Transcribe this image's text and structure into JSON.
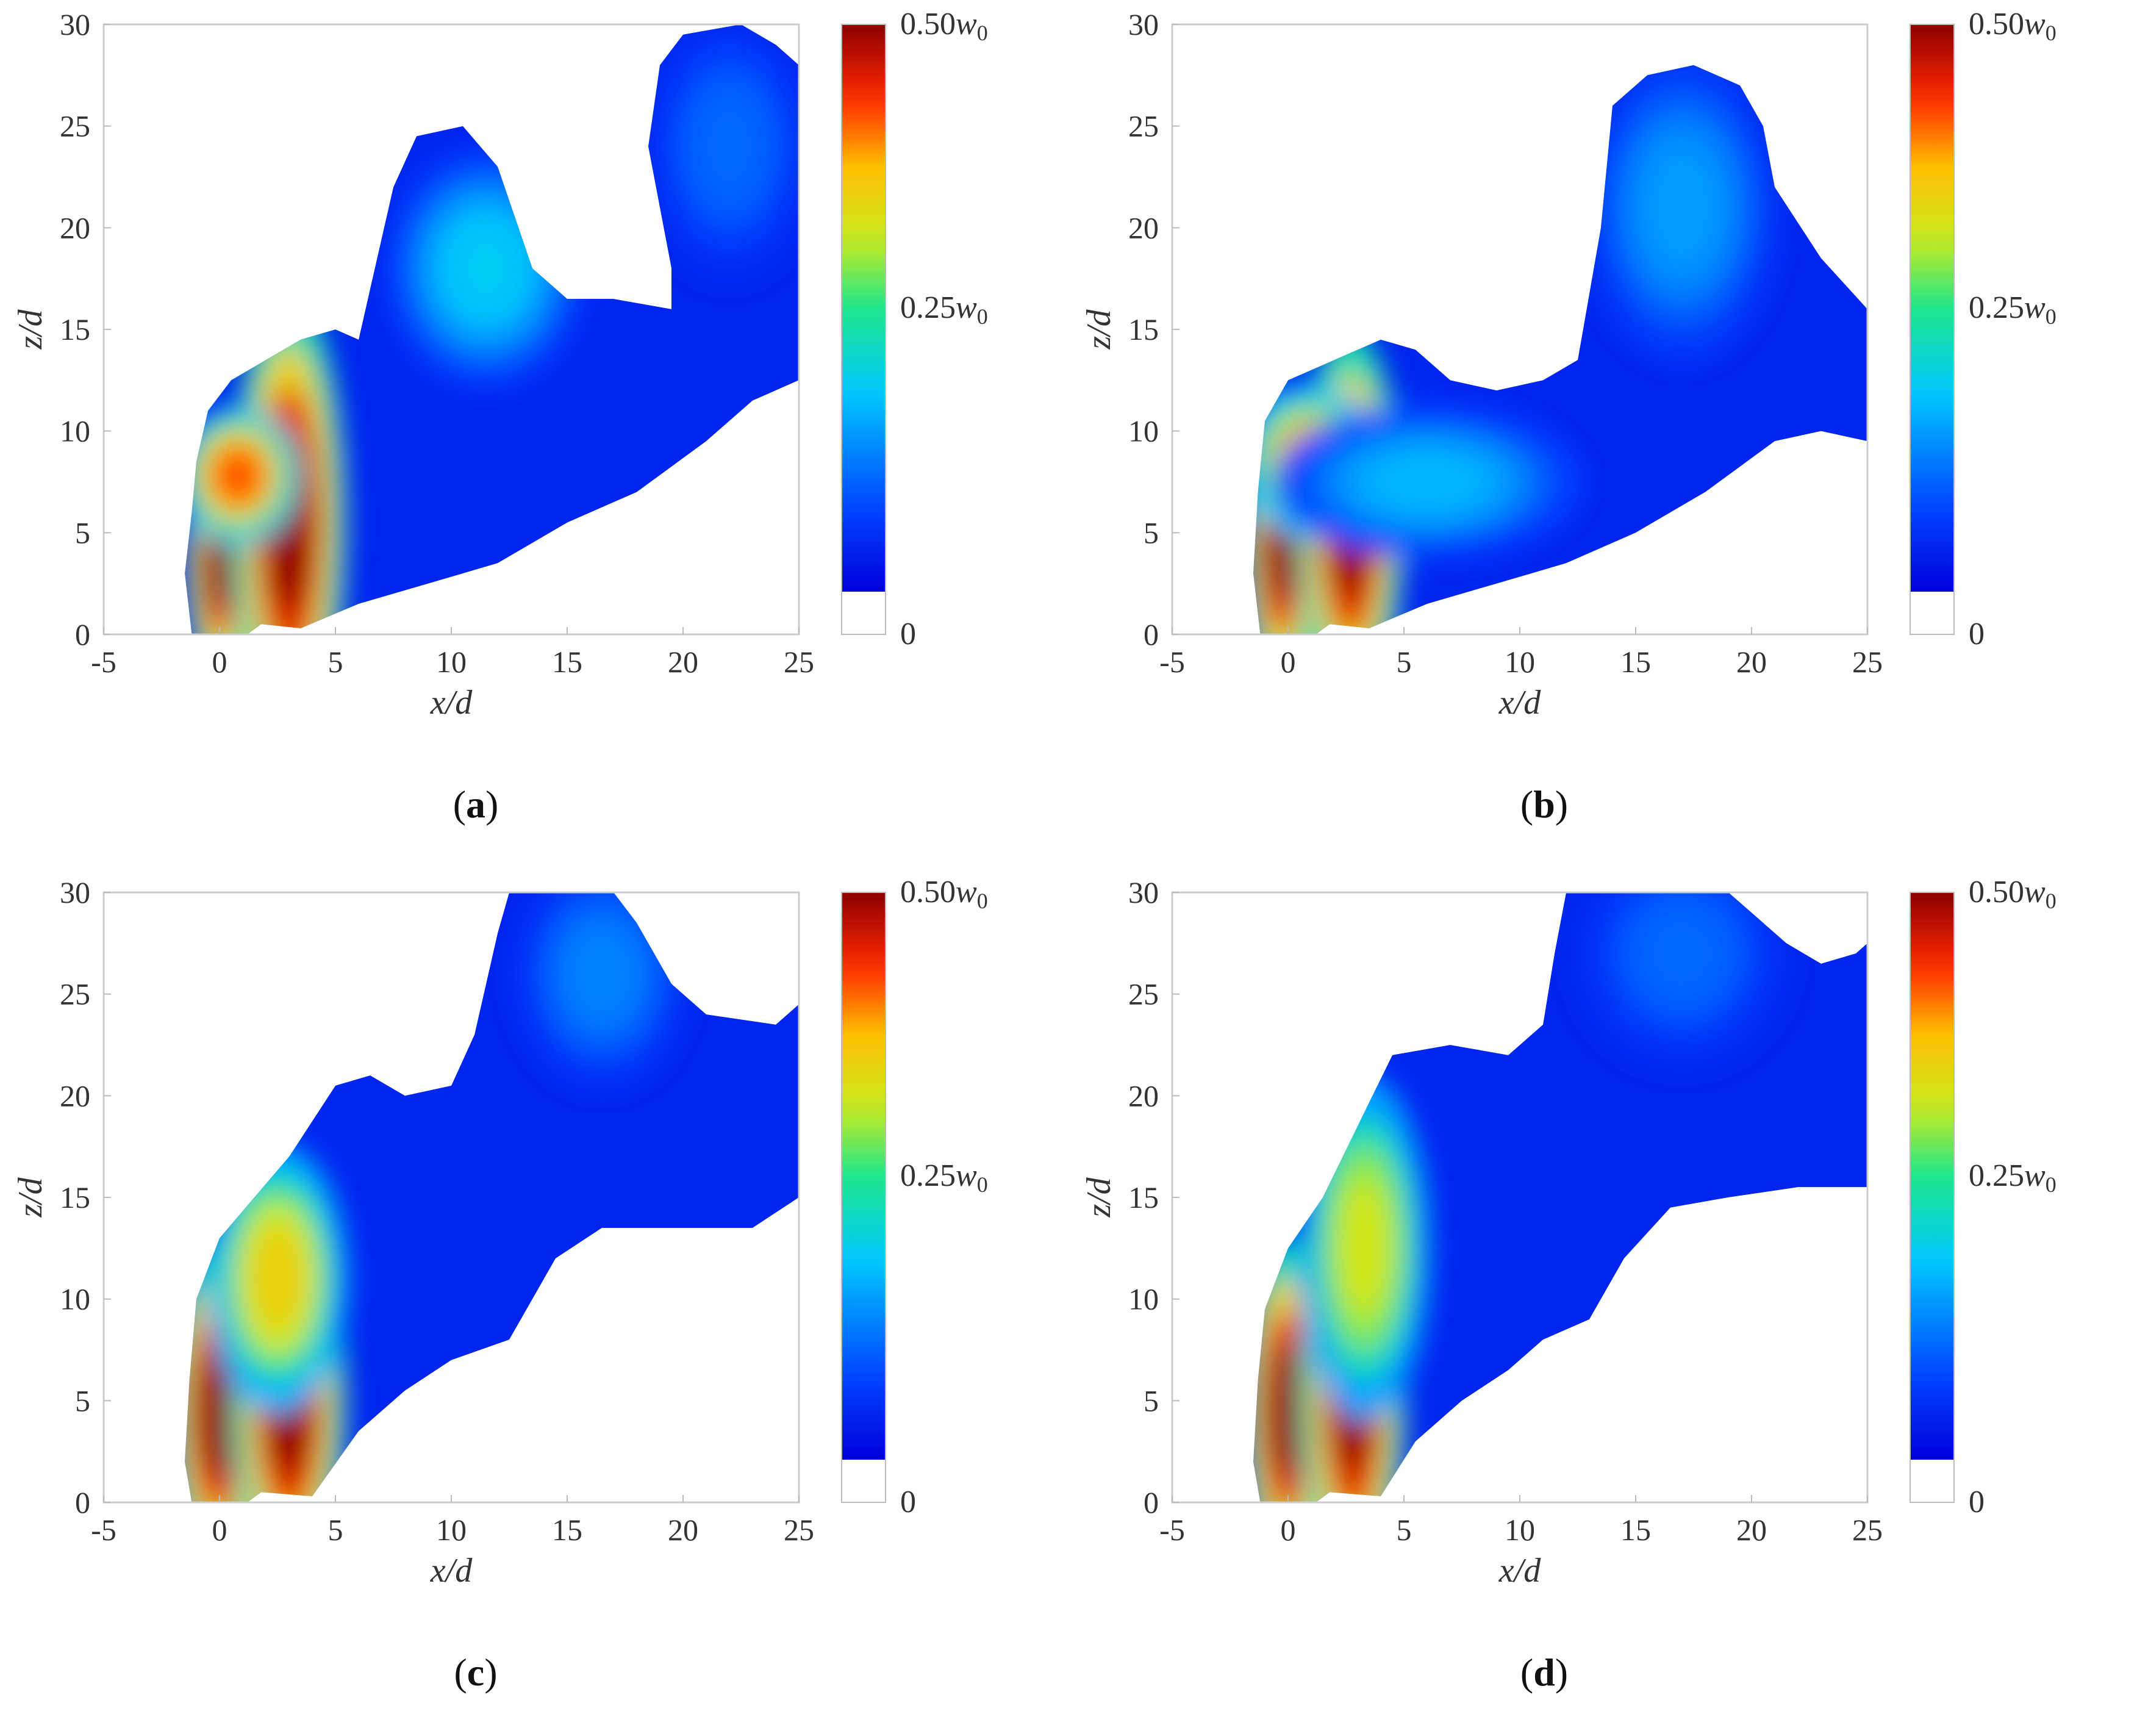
{
  "chart_data": [
    {
      "type": "heatmap",
      "panel_label": "a",
      "xlabel": "x/d",
      "ylabel": "z/d",
      "xlim": [
        -5,
        25
      ],
      "ylim": [
        0,
        30
      ],
      "xticks": [
        "-5",
        "0",
        "5",
        "10",
        "15",
        "20",
        "25"
      ],
      "yticks": [
        "0",
        "5",
        "10",
        "15",
        "20",
        "25",
        "30"
      ],
      "colorbar": {
        "labels": [
          "0.50w0",
          "0.25w0",
          "0"
        ],
        "max": 0.5,
        "mid": 0.25,
        "min": 0
      },
      "jet_outline": [
        [
          -1.2,
          0
        ],
        [
          1.2,
          0
        ],
        [
          1.8,
          0.5
        ],
        [
          3.5,
          0.3
        ],
        [
          6,
          1.5
        ],
        [
          9,
          2.5
        ],
        [
          12,
          3.5
        ],
        [
          15,
          5.5
        ],
        [
          18,
          7
        ],
        [
          21,
          9.5
        ],
        [
          23,
          11.5
        ],
        [
          25,
          12.5
        ],
        [
          25,
          28
        ],
        [
          24,
          29
        ],
        [
          22.5,
          30
        ],
        [
          20,
          29.5
        ],
        [
          19,
          28
        ],
        [
          18.5,
          24
        ],
        [
          19.5,
          18
        ],
        [
          19.5,
          16
        ],
        [
          17,
          16.5
        ],
        [
          15,
          16.5
        ],
        [
          13.5,
          18
        ],
        [
          12,
          23
        ],
        [
          10.5,
          25
        ],
        [
          8.5,
          24.5
        ],
        [
          7.5,
          22
        ],
        [
          6.5,
          17
        ],
        [
          6,
          14.5
        ],
        [
          5,
          15
        ],
        [
          3.5,
          14.5
        ],
        [
          2,
          13.5
        ],
        [
          0.5,
          12.5
        ],
        [
          -0.5,
          11
        ],
        [
          -1,
          8.5
        ],
        [
          -1.2,
          6
        ],
        [
          -1.5,
          3
        ]
      ],
      "plumes": [
        {
          "x": 0,
          "z": 3.5,
          "w": 0.8,
          "h": 3.2,
          "level": 0.5
        },
        {
          "x": 3,
          "z": 5.5,
          "w": 1.3,
          "h": 6,
          "level": 0.5
        },
        {
          "x": 0.8,
          "z": 7.8,
          "w": 1.4,
          "h": 1.8,
          "level": 0.42
        },
        {
          "x": 11.5,
          "z": 18,
          "w": 2.2,
          "h": 3,
          "level": 0.18
        },
        {
          "x": 22,
          "z": 24,
          "w": 2,
          "h": 3.5,
          "level": 0.1
        }
      ]
    },
    {
      "type": "heatmap",
      "panel_label": "b",
      "xlabel": "x/d",
      "ylabel": "z/d",
      "xlim": [
        -5,
        25
      ],
      "ylim": [
        0,
        30
      ],
      "xticks": [
        "-5",
        "0",
        "5",
        "10",
        "15",
        "20",
        "25"
      ],
      "yticks": [
        "0",
        "5",
        "10",
        "15",
        "20",
        "25",
        "30"
      ],
      "colorbar": {
        "labels": [
          "0.50w0",
          "0.25w0",
          "0"
        ],
        "max": 0.5,
        "mid": 0.25,
        "min": 0
      },
      "jet_outline": [
        [
          -1.2,
          0
        ],
        [
          1.2,
          0
        ],
        [
          1.8,
          0.5
        ],
        [
          3.5,
          0.3
        ],
        [
          6,
          1.5
        ],
        [
          9,
          2.5
        ],
        [
          12,
          3.5
        ],
        [
          15,
          5
        ],
        [
          18,
          7
        ],
        [
          21,
          9.5
        ],
        [
          23,
          10
        ],
        [
          25,
          9.5
        ],
        [
          25,
          16
        ],
        [
          23,
          18.5
        ],
        [
          21,
          22
        ],
        [
          20.5,
          25
        ],
        [
          19.5,
          27
        ],
        [
          17.5,
          28
        ],
        [
          15.5,
          27.5
        ],
        [
          14,
          26
        ],
        [
          13.5,
          20
        ],
        [
          12.5,
          13.5
        ],
        [
          11,
          12.5
        ],
        [
          9,
          12
        ],
        [
          7,
          12.5
        ],
        [
          5.5,
          14
        ],
        [
          4,
          14.5
        ],
        [
          2,
          13.5
        ],
        [
          0,
          12.5
        ],
        [
          -1,
          10.5
        ],
        [
          -1.3,
          7
        ],
        [
          -1.5,
          3
        ]
      ],
      "plumes": [
        {
          "x": -0.3,
          "z": 4.5,
          "w": 0.9,
          "h": 4,
          "level": 0.5
        },
        {
          "x": 2.7,
          "z": 5.5,
          "w": 1.2,
          "h": 5,
          "level": 0.5
        },
        {
          "x": 1,
          "z": 8.5,
          "w": 1.6,
          "h": 2,
          "level": 0.4
        },
        {
          "x": 6,
          "z": 7.5,
          "w": 3.5,
          "h": 2,
          "level": 0.16
        },
        {
          "x": 17,
          "z": 21,
          "w": 2.2,
          "h": 4,
          "level": 0.14
        }
      ]
    },
    {
      "type": "heatmap",
      "panel_label": "c",
      "xlabel": "x/d",
      "ylabel": "z/d",
      "xlim": [
        -5,
        25
      ],
      "ylim": [
        0,
        30
      ],
      "xticks": [
        "-5",
        "0",
        "5",
        "10",
        "15",
        "20",
        "25"
      ],
      "yticks": [
        "0",
        "5",
        "10",
        "15",
        "20",
        "25",
        "30"
      ],
      "colorbar": {
        "labels": [
          "0.50w0",
          "0.25w0",
          "0"
        ],
        "max": 0.5,
        "mid": 0.25,
        "min": 0
      },
      "jet_outline": [
        [
          -1.2,
          0
        ],
        [
          1.2,
          0
        ],
        [
          1.8,
          0.5
        ],
        [
          4,
          0.3
        ],
        [
          6,
          3.5
        ],
        [
          8,
          5.5
        ],
        [
          10,
          7
        ],
        [
          12.5,
          8
        ],
        [
          14.5,
          12
        ],
        [
          16.5,
          13.5
        ],
        [
          20,
          13.5
        ],
        [
          23,
          13.5
        ],
        [
          25,
          15
        ],
        [
          25,
          24.5
        ],
        [
          24,
          23.5
        ],
        [
          21,
          24
        ],
        [
          19.5,
          25.5
        ],
        [
          18,
          28.5
        ],
        [
          17,
          30
        ],
        [
          12.5,
          30
        ],
        [
          12,
          28
        ],
        [
          11,
          23
        ],
        [
          10,
          20.5
        ],
        [
          8,
          20
        ],
        [
          6.5,
          21
        ],
        [
          5,
          20.5
        ],
        [
          3,
          17
        ],
        [
          1.5,
          15
        ],
        [
          0,
          13
        ],
        [
          -1,
          10
        ],
        [
          -1.3,
          6
        ],
        [
          -1.5,
          2
        ]
      ],
      "plumes": [
        {
          "x": -0.1,
          "z": 4.5,
          "w": 1.1,
          "h": 4.5,
          "level": 0.5
        },
        {
          "x": 3,
          "z": 5,
          "w": 1.3,
          "h": 5,
          "level": 0.5
        },
        {
          "x": 2.5,
          "z": 11,
          "w": 1.6,
          "h": 3.5,
          "level": 0.35
        },
        {
          "x": 16.5,
          "z": 26,
          "w": 2,
          "h": 3,
          "level": 0.12
        }
      ]
    },
    {
      "type": "heatmap",
      "panel_label": "d",
      "xlabel": "x/d",
      "ylabel": "z/d",
      "xlim": [
        -5,
        25
      ],
      "ylim": [
        0,
        30
      ],
      "xticks": [
        "-5",
        "0",
        "5",
        "10",
        "15",
        "20",
        "25"
      ],
      "yticks": [
        "0",
        "5",
        "10",
        "15",
        "20",
        "25",
        "30"
      ],
      "colorbar": {
        "labels": [
          "0.50w0",
          "0.25w0",
          "0"
        ],
        "max": 0.5,
        "mid": 0.25,
        "min": 0
      },
      "jet_outline": [
        [
          -1.2,
          0
        ],
        [
          1.2,
          0
        ],
        [
          1.8,
          0.5
        ],
        [
          4,
          0.3
        ],
        [
          5.5,
          3
        ],
        [
          7.5,
          5
        ],
        [
          9.5,
          6.5
        ],
        [
          11,
          8
        ],
        [
          13,
          9
        ],
        [
          14.5,
          12
        ],
        [
          16.5,
          14.5
        ],
        [
          19,
          15
        ],
        [
          22,
          15.5
        ],
        [
          25,
          15.5
        ],
        [
          25,
          27.5
        ],
        [
          24.5,
          27
        ],
        [
          23,
          26.5
        ],
        [
          21.5,
          27.5
        ],
        [
          20,
          29
        ],
        [
          19,
          30
        ],
        [
          12,
          30
        ],
        [
          11.5,
          27
        ],
        [
          11,
          23.5
        ],
        [
          9.5,
          22
        ],
        [
          7,
          22.5
        ],
        [
          4.5,
          22
        ],
        [
          3,
          18.5
        ],
        [
          1.5,
          15
        ],
        [
          0,
          12.5
        ],
        [
          -1,
          9.5
        ],
        [
          -1.3,
          6
        ],
        [
          -1.5,
          2
        ]
      ],
      "plumes": [
        {
          "x": -0.1,
          "z": 4.5,
          "w": 1,
          "h": 4.5,
          "level": 0.5
        },
        {
          "x": 2.8,
          "z": 5.5,
          "w": 1.2,
          "h": 5.5,
          "level": 0.5
        },
        {
          "x": 3.3,
          "z": 12.5,
          "w": 1.5,
          "h": 4.5,
          "level": 0.32
        },
        {
          "x": 17,
          "z": 27,
          "w": 2.5,
          "h": 3,
          "level": 0.1
        }
      ]
    }
  ]
}
